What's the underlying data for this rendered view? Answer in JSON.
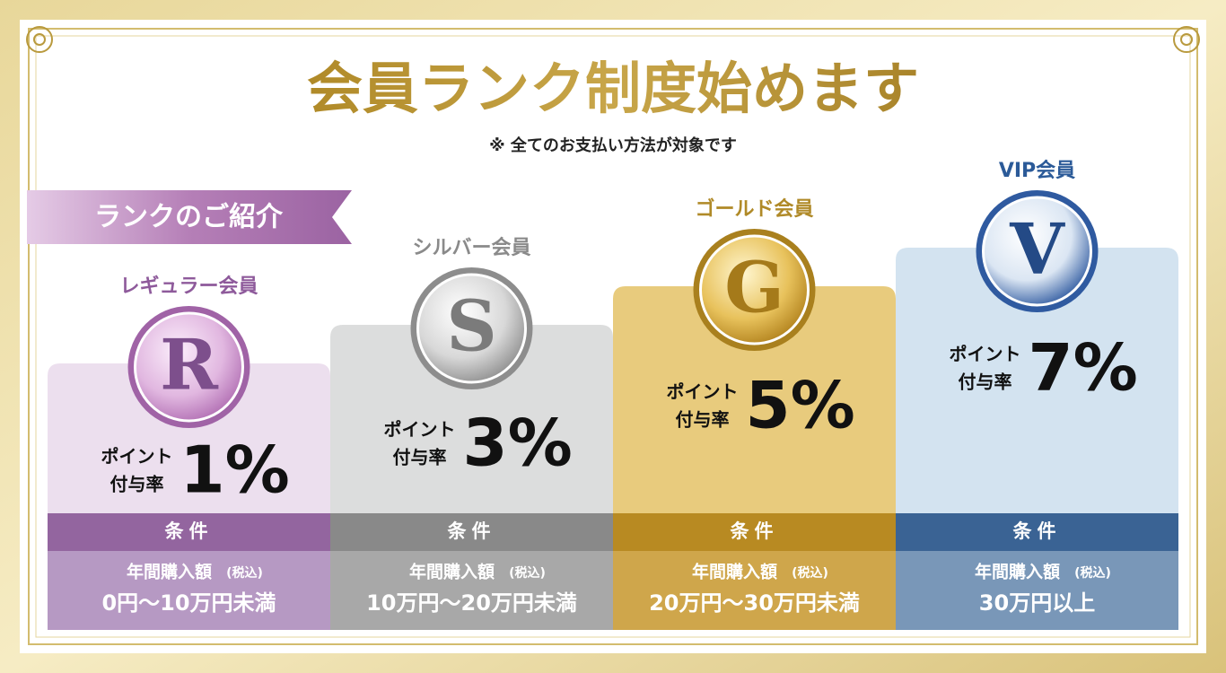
{
  "title": "会員ランク制度始めます",
  "note": "※ 全てのお支払い方法が対象です",
  "section_label": "ランクのご紹介",
  "ranks": [
    {
      "name": "レギュラー会員",
      "letter": "R",
      "point_label": [
        "ポイント",
        "付与率"
      ],
      "rate": "1%",
      "condition_header": "条件",
      "condition_label": "年間購入額",
      "tax_note": "(税込)",
      "condition": "0円〜10万円未満"
    },
    {
      "name": "シルバー会員",
      "letter": "S",
      "point_label": [
        "ポイント",
        "付与率"
      ],
      "rate": "3%",
      "condition_header": "条件",
      "condition_label": "年間購入額",
      "tax_note": "(税込)",
      "condition": "10万円〜20万円未満"
    },
    {
      "name": "ゴールド会員",
      "letter": "G",
      "point_label": [
        "ポイント",
        "付与率"
      ],
      "rate": "5%",
      "condition_header": "条件",
      "condition_label": "年間購入額",
      "tax_note": "(税込)",
      "condition": "20万円〜30万円未満"
    },
    {
      "name": "VIP会員",
      "letter": "V",
      "point_label": [
        "ポイント",
        "付与率"
      ],
      "rate": "7%",
      "condition_header": "条件",
      "condition_label": "年間購入額",
      "tax_note": "(税込)",
      "condition": "30万円以上"
    }
  ]
}
